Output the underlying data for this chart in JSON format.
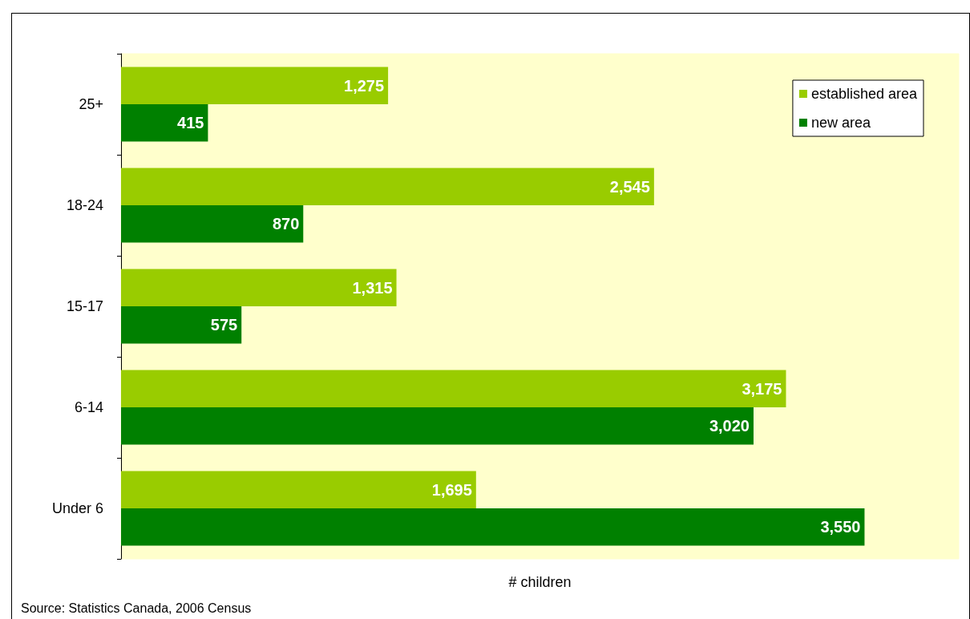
{
  "chart_data": {
    "type": "bar",
    "orientation": "horizontal",
    "categories": [
      "25+",
      "18-24",
      "15-17",
      "6-14",
      "Under 6"
    ],
    "series": [
      {
        "name": "established area",
        "color": "#99cc00",
        "values": [
          1275,
          2545,
          1315,
          3175,
          1695
        ],
        "value_labels": [
          "1,275",
          "2,545",
          "1,315",
          "3,175",
          "1,695"
        ]
      },
      {
        "name": "new area",
        "color": "#008000",
        "values": [
          415,
          870,
          575,
          3020,
          3550
        ],
        "value_labels": [
          "415",
          "870",
          "575",
          "3,020",
          "3,550"
        ]
      }
    ],
    "xlabel": "# children",
    "legend": "top right",
    "grid": false,
    "tick_labels": "y",
    "annotations": [
      "Source: Statistics Canada, 2006 Census"
    ]
  }
}
